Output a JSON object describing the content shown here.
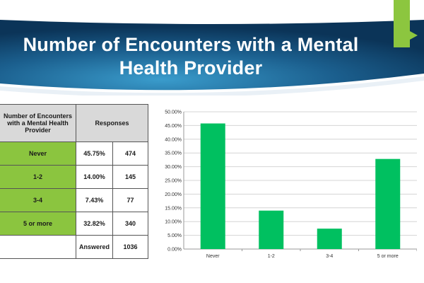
{
  "slide": {
    "title_line1": "Number of Encounters with a Mental",
    "title_line2": "Health Provider"
  },
  "table": {
    "header_label": "Number of Encounters with a Mental Health Provider",
    "header_responses": "Responses",
    "rows": [
      {
        "label": "Never",
        "percent": "45.75%",
        "count": "474"
      },
      {
        "label": "1-2",
        "percent": "14.00%",
        "count": "145"
      },
      {
        "label": "3-4",
        "percent": "7.43%",
        "count": "77"
      },
      {
        "label": "5 or more",
        "percent": "32.82%",
        "count": "340"
      }
    ],
    "answered_label": "Answered",
    "answered_count": "1036"
  },
  "colors": {
    "accent": "#8cc63f",
    "bar": "#00c060",
    "banner_dark": "#0b3c62",
    "banner_light": "#2f8fbf"
  },
  "chart_data": {
    "type": "bar",
    "categories": [
      "Never",
      "1-2",
      "3-4",
      "5 or more"
    ],
    "values": [
      45.75,
      14.0,
      7.43,
      32.82
    ],
    "ylim": [
      0,
      50
    ],
    "yticks": [
      "0.00%",
      "5.00%",
      "10.00%",
      "15.00%",
      "20.00%",
      "25.00%",
      "30.00%",
      "35.00%",
      "40.00%",
      "45.00%",
      "50.00%"
    ],
    "title": "",
    "xlabel": "",
    "ylabel": "",
    "grid": true,
    "legend": "none"
  }
}
